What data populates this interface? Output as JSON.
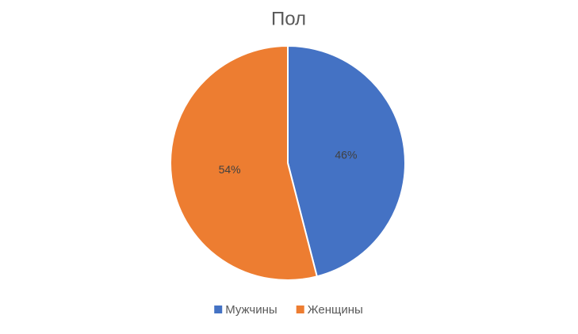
{
  "chart_data": {
    "type": "pie",
    "title": "Пол",
    "categories": [
      "Мужчины",
      "Женщины"
    ],
    "values": [
      46,
      54
    ],
    "value_labels": [
      "46%",
      "54%"
    ],
    "colors": [
      "#4472c4",
      "#ed7d31"
    ],
    "legend": "bottom"
  }
}
